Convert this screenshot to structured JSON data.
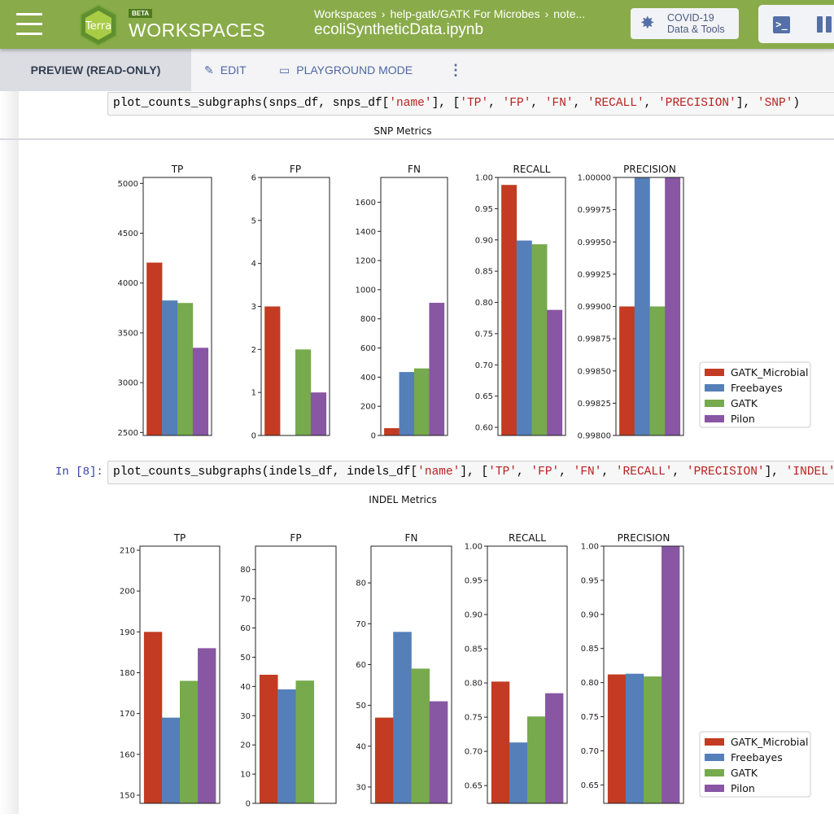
{
  "topbar": {
    "menu_icon": "hamburger-icon",
    "logo_text": "Terra",
    "beta_badge": "BETA",
    "section_title": "WORKSPACES",
    "breadcrumbs": [
      "Workspaces",
      "help-gatk/GATK For Microbes",
      "note..."
    ],
    "breadcrumb_separator": "›",
    "filename": "ecoliSyntheticData.ipynb",
    "covid_button": {
      "icon": "virus-icon",
      "line1": "COVID-19",
      "line2": "Data & Tools"
    },
    "terminal_icon": "terminal-icon",
    "pause_icon": "pause-icon"
  },
  "modebar": {
    "preview_label": "PREVIEW (READ-ONLY)",
    "edit_label": "EDIT",
    "playground_label": "PLAYGROUND MODE",
    "more_icon": "vertical-dots-icon"
  },
  "cells": [
    {
      "prompt": "",
      "code_parts": [
        {
          "t": "plot_counts_subgraphs(snps_df, snps_df[",
          "s": false
        },
        {
          "t": "'name'",
          "s": true
        },
        {
          "t": "], [",
          "s": false
        },
        {
          "t": "'TP'",
          "s": true
        },
        {
          "t": ", ",
          "s": false
        },
        {
          "t": "'FP'",
          "s": true
        },
        {
          "t": ", ",
          "s": false
        },
        {
          "t": "'FN'",
          "s": true
        },
        {
          "t": ", ",
          "s": false
        },
        {
          "t": "'RECALL'",
          "s": true
        },
        {
          "t": ", ",
          "s": false
        },
        {
          "t": "'PRECISION'",
          "s": true
        },
        {
          "t": "], ",
          "s": false
        },
        {
          "t": "'SNP'",
          "s": true
        },
        {
          "t": ")",
          "s": false
        }
      ]
    },
    {
      "prompt": "In [8]:",
      "code_parts": [
        {
          "t": "plot_counts_subgraphs(indels_df, indels_df[",
          "s": false
        },
        {
          "t": "'name'",
          "s": true
        },
        {
          "t": "], [",
          "s": false
        },
        {
          "t": "'TP'",
          "s": true
        },
        {
          "t": ", ",
          "s": false
        },
        {
          "t": "'FP'",
          "s": true
        },
        {
          "t": ", ",
          "s": false
        },
        {
          "t": "'FN'",
          "s": true
        },
        {
          "t": ", ",
          "s": false
        },
        {
          "t": "'RECALL'",
          "s": true
        },
        {
          "t": ", ",
          "s": false
        },
        {
          "t": "'PRECISION'",
          "s": true
        },
        {
          "t": "], ",
          "s": false
        },
        {
          "t": "'INDEL'",
          "s": true
        },
        {
          "t": ")",
          "s": false
        }
      ]
    }
  ],
  "chart_data": [
    {
      "type": "bar",
      "title": "SNP Metrics",
      "series_names": [
        "GATK_Microbial",
        "Freebayes",
        "GATK",
        "Pilon"
      ],
      "colors": [
        "#c23b22",
        "#557fb8",
        "#76aa4c",
        "#8856a3"
      ],
      "legend": "right",
      "panels": [
        {
          "title": "TP",
          "ylim": [
            2470,
            5060
          ],
          "ticks": [
            2500,
            3000,
            3500,
            4000,
            4500,
            5000
          ],
          "tick_labels": [
            "2500",
            "3000",
            "3500",
            "4000",
            "4500",
            "5000"
          ],
          "values": [
            4205,
            3825,
            3800,
            3350
          ]
        },
        {
          "title": "FP",
          "ylim": [
            0,
            6
          ],
          "ticks": [
            0,
            1,
            2,
            3,
            4,
            5,
            6
          ],
          "tick_labels": [
            "0",
            "1",
            "2",
            "3",
            "4",
            "5",
            "6"
          ],
          "values": [
            3,
            0,
            2,
            1
          ]
        },
        {
          "title": "FN",
          "ylim": [
            0,
            1770
          ],
          "ticks": [
            0,
            200,
            400,
            600,
            800,
            1000,
            1200,
            1400,
            1600
          ],
          "tick_labels": [
            "0",
            "200",
            "400",
            "600",
            "800",
            "1000",
            "1200",
            "1400",
            "1600"
          ],
          "values": [
            50,
            435,
            460,
            910
          ]
        },
        {
          "title": "RECALL",
          "ylim": [
            0.587,
            1.0
          ],
          "ticks": [
            0.6,
            0.65,
            0.7,
            0.75,
            0.8,
            0.85,
            0.9,
            0.95,
            1.0
          ],
          "tick_labels": [
            "0.60",
            "0.65",
            "0.70",
            "0.75",
            "0.80",
            "0.85",
            "0.90",
            "0.95",
            "1.00"
          ],
          "values": [
            0.988,
            0.899,
            0.893,
            0.788
          ]
        },
        {
          "title": "PRECISION",
          "ylim": [
            0.998,
            1.0
          ],
          "ticks": [
            0.998,
            0.99825,
            0.9985,
            0.99875,
            0.999,
            0.99925,
            0.9995,
            0.99975,
            1.0
          ],
          "tick_labels": [
            "0.99800",
            "0.99825",
            "0.99850",
            "0.99875",
            "0.99900",
            "0.99925",
            "0.99950",
            "0.99975",
            "1.00000"
          ],
          "values": [
            0.999,
            1.0,
            0.999,
            1.0
          ]
        }
      ]
    },
    {
      "type": "bar",
      "title": "INDEL Metrics",
      "series_names": [
        "GATK_Microbial",
        "Freebayes",
        "GATK",
        "Pilon"
      ],
      "colors": [
        "#c23b22",
        "#557fb8",
        "#76aa4c",
        "#8856a3"
      ],
      "legend": "right",
      "panels": [
        {
          "title": "TP",
          "ylim": [
            148,
            211
          ],
          "ticks": [
            150,
            160,
            170,
            180,
            190,
            200,
            210
          ],
          "tick_labels": [
            "150",
            "160",
            "170",
            "180",
            "190",
            "200",
            "210"
          ],
          "values": [
            190,
            169,
            178,
            186
          ]
        },
        {
          "title": "FP",
          "ylim": [
            0,
            88
          ],
          "ticks": [
            0,
            10,
            20,
            30,
            40,
            50,
            60,
            70,
            80
          ],
          "tick_labels": [
            "0",
            "10",
            "20",
            "30",
            "40",
            "50",
            "60",
            "70",
            "80"
          ],
          "values": [
            44,
            39,
            42,
            0
          ]
        },
        {
          "title": "FN",
          "ylim": [
            26,
            89
          ],
          "ticks": [
            30,
            40,
            50,
            60,
            70,
            80
          ],
          "tick_labels": [
            "30",
            "40",
            "50",
            "60",
            "70",
            "80"
          ],
          "values": [
            47,
            68,
            59,
            51
          ]
        },
        {
          "title": "RECALL",
          "ylim": [
            0.624,
            1.0
          ],
          "ticks": [
            0.65,
            0.7,
            0.75,
            0.8,
            0.85,
            0.9,
            0.95,
            1.0
          ],
          "tick_labels": [
            "0.65",
            "0.70",
            "0.75",
            "0.80",
            "0.85",
            "0.90",
            "0.95",
            "1.00"
          ],
          "values": [
            0.802,
            0.713,
            0.751,
            0.785
          ]
        },
        {
          "title": "PRECISION",
          "ylim": [
            0.623,
            1.0
          ],
          "ticks": [
            0.65,
            0.7,
            0.75,
            0.8,
            0.85,
            0.9,
            0.95,
            1.0
          ],
          "tick_labels": [
            "0.65",
            "0.70",
            "0.75",
            "0.80",
            "0.85",
            "0.90",
            "0.95",
            "1.00"
          ],
          "values": [
            0.812,
            0.813,
            0.809,
            1.0
          ]
        }
      ]
    }
  ]
}
